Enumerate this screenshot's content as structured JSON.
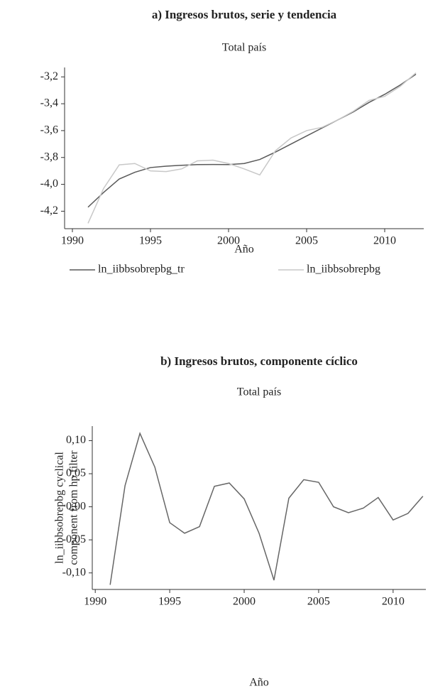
{
  "chart_data": [
    {
      "type": "line",
      "title": "a) Ingresos brutos, serie y tendencia",
      "subtitle": "Total país",
      "xlabel": "Año",
      "x": [
        1991,
        1992,
        1993,
        1994,
        1995,
        1996,
        1997,
        1998,
        1999,
        2000,
        2001,
        2002,
        2003,
        2004,
        2005,
        2006,
        2007,
        2008,
        2009,
        2010,
        2011,
        2012
      ],
      "series": [
        {
          "name": "ln_iibbsobrepbg_tr",
          "color": "#595959",
          "values": [
            -4.17,
            -4.06,
            -3.96,
            -3.91,
            -3.875,
            -3.865,
            -3.858,
            -3.853,
            -3.852,
            -3.853,
            -3.845,
            -3.815,
            -3.76,
            -3.7,
            -3.64,
            -3.58,
            -3.52,
            -3.46,
            -3.39,
            -3.33,
            -3.26,
            -3.18
          ]
        },
        {
          "name": "ln_iibbsobrepbg",
          "color": "#c8c8c8",
          "values": [
            -4.29,
            -4.03,
            -3.855,
            -3.845,
            -3.9,
            -3.905,
            -3.885,
            -3.825,
            -3.82,
            -3.845,
            -3.885,
            -3.93,
            -3.75,
            -3.655,
            -3.6,
            -3.575,
            -3.52,
            -3.455,
            -3.375,
            -3.345,
            -3.27,
            -3.17
          ]
        }
      ],
      "xlim": [
        1989.5,
        2012.5
      ],
      "xticks": [
        1990,
        1995,
        2000,
        2005,
        2010
      ],
      "ylim": [
        -4.33,
        -3.13
      ],
      "yticks": [
        {
          "value": -4.2,
          "label": "-4,2"
        },
        {
          "value": -4.0,
          "label": "-4,0"
        },
        {
          "value": -3.8,
          "label": "-3,8"
        },
        {
          "value": -3.6,
          "label": "-3,6"
        },
        {
          "value": -3.4,
          "label": "-3,4"
        },
        {
          "value": -3.2,
          "label": "-3,2"
        }
      ]
    },
    {
      "type": "line",
      "title": "b) Ingresos brutos, componente cíclico",
      "subtitle": "Total país",
      "xlabel": "Año",
      "ylabel": [
        "ln_iibbsobrepbg cyclical",
        "component from hp filter"
      ],
      "x": [
        1991,
        1992,
        1993,
        1994,
        1995,
        1996,
        1997,
        1998,
        1999,
        2000,
        2001,
        2002,
        2003,
        2004,
        2005,
        2006,
        2007,
        2008,
        2009,
        2010,
        2011,
        2012
      ],
      "series": [
        {
          "color": "#666666",
          "values": [
            -0.118,
            0.032,
            0.111,
            0.06,
            -0.024,
            -0.04,
            -0.03,
            0.031,
            0.036,
            0.012,
            -0.04,
            -0.111,
            0.013,
            0.041,
            0.037,
            0.0,
            -0.009,
            -0.002,
            0.014,
            -0.02,
            -0.01,
            0.016
          ]
        }
      ],
      "xlim": [
        1989.8,
        2012.2
      ],
      "xticks": [
        1990,
        1995,
        2000,
        2005,
        2010
      ],
      "ylim": [
        -0.125,
        0.122
      ],
      "yticks": [
        {
          "value": -0.1,
          "label": "-0,10"
        },
        {
          "value": -0.05,
          "label": "-0,05"
        },
        {
          "value": 0,
          "label": "0,00"
        },
        {
          "value": 0.05,
          "label": "0,05"
        },
        {
          "value": 0.1,
          "label": "0,10"
        }
      ]
    }
  ]
}
